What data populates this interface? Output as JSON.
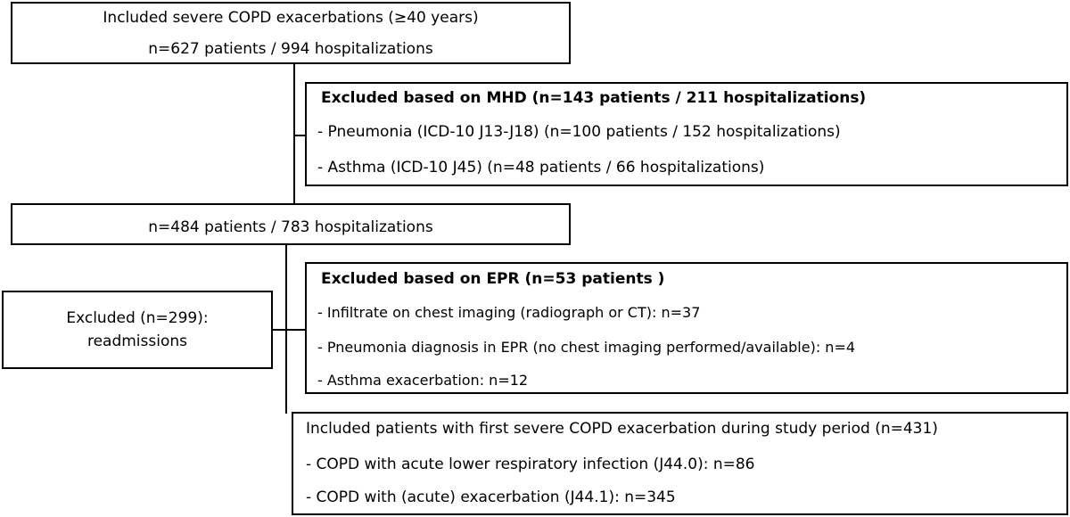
{
  "box_included": {
    "line1": "Included severe COPD exacerbations (≥40 years)",
    "line2": "n=627 patients / 994 hospitalizations"
  },
  "box_excluded_mhd": {
    "title": "Excluded based on MHD (n=143 patients / 211 hospitalizations)",
    "items": [
      "- Pneumonia (ICD-10 J13-J18) (n=100 patients / 152 hospitalizations)",
      "- Asthma (ICD-10 J45) (n=48 patients / 66 hospitalizations)"
    ]
  },
  "box_remaining": {
    "line1": "n=484 patients / 783 hospitalizations"
  },
  "box_excluded_epr": {
    "title": "Excluded based on EPR (n=53 patients )",
    "items": [
      "- Infiltrate on chest imaging (radiograph or CT): n=37",
      "- Pneumonia diagnosis in EPR (no chest imaging performed/available): n=4",
      "- Asthma exacerbation: n=12"
    ]
  },
  "box_readmissions": {
    "line1": "Excluded (n=299):",
    "line2": "readmissions"
  },
  "box_final": {
    "title": "Included patients with first severe COPD exacerbation during study period (n=431)",
    "items": [
      "- COPD with acute lower respiratory infection (J44.0): n=86",
      "- COPD with (acute) exacerbation (J44.1): n=345"
    ]
  }
}
